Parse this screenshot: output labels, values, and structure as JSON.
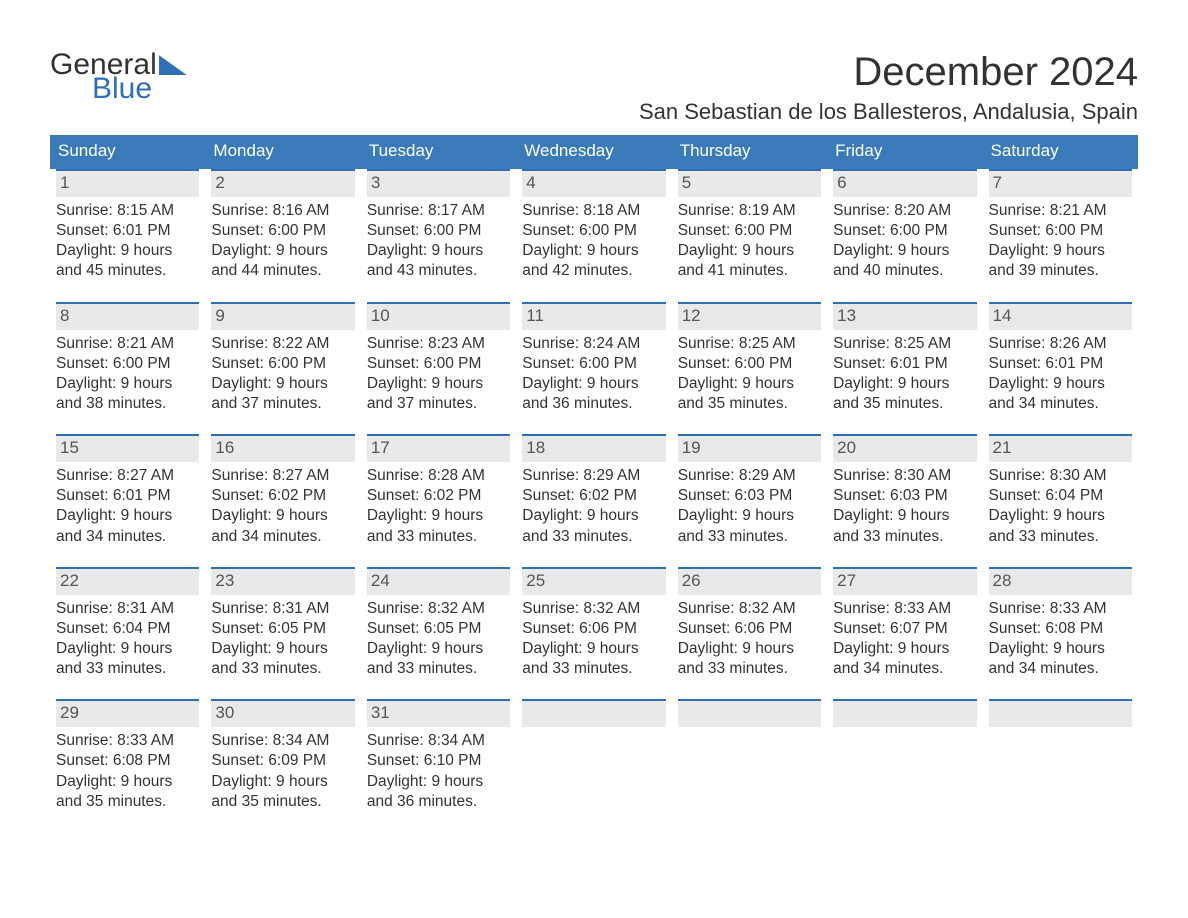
{
  "brand": {
    "word1": "General",
    "word2": "Blue"
  },
  "title": "December 2024",
  "location": "San Sebastian de los Ballesteros, Andalusia, Spain",
  "colors": {
    "header_bg": "#3a7ab8",
    "header_text": "#ffffff",
    "accent_border": "#2f6fb4",
    "daynum_bg": "#e9e9e9",
    "text": "#333333"
  },
  "weekdays": [
    "Sunday",
    "Monday",
    "Tuesday",
    "Wednesday",
    "Thursday",
    "Friday",
    "Saturday"
  ],
  "weeks": [
    [
      {
        "n": "1",
        "sr": "Sunrise: 8:15 AM",
        "ss": "Sunset: 6:01 PM",
        "d1": "Daylight: 9 hours",
        "d2": "and 45 minutes."
      },
      {
        "n": "2",
        "sr": "Sunrise: 8:16 AM",
        "ss": "Sunset: 6:00 PM",
        "d1": "Daylight: 9 hours",
        "d2": "and 44 minutes."
      },
      {
        "n": "3",
        "sr": "Sunrise: 8:17 AM",
        "ss": "Sunset: 6:00 PM",
        "d1": "Daylight: 9 hours",
        "d2": "and 43 minutes."
      },
      {
        "n": "4",
        "sr": "Sunrise: 8:18 AM",
        "ss": "Sunset: 6:00 PM",
        "d1": "Daylight: 9 hours",
        "d2": "and 42 minutes."
      },
      {
        "n": "5",
        "sr": "Sunrise: 8:19 AM",
        "ss": "Sunset: 6:00 PM",
        "d1": "Daylight: 9 hours",
        "d2": "and 41 minutes."
      },
      {
        "n": "6",
        "sr": "Sunrise: 8:20 AM",
        "ss": "Sunset: 6:00 PM",
        "d1": "Daylight: 9 hours",
        "d2": "and 40 minutes."
      },
      {
        "n": "7",
        "sr": "Sunrise: 8:21 AM",
        "ss": "Sunset: 6:00 PM",
        "d1": "Daylight: 9 hours",
        "d2": "and 39 minutes."
      }
    ],
    [
      {
        "n": "8",
        "sr": "Sunrise: 8:21 AM",
        "ss": "Sunset: 6:00 PM",
        "d1": "Daylight: 9 hours",
        "d2": "and 38 minutes."
      },
      {
        "n": "9",
        "sr": "Sunrise: 8:22 AM",
        "ss": "Sunset: 6:00 PM",
        "d1": "Daylight: 9 hours",
        "d2": "and 37 minutes."
      },
      {
        "n": "10",
        "sr": "Sunrise: 8:23 AM",
        "ss": "Sunset: 6:00 PM",
        "d1": "Daylight: 9 hours",
        "d2": "and 37 minutes."
      },
      {
        "n": "11",
        "sr": "Sunrise: 8:24 AM",
        "ss": "Sunset: 6:00 PM",
        "d1": "Daylight: 9 hours",
        "d2": "and 36 minutes."
      },
      {
        "n": "12",
        "sr": "Sunrise: 8:25 AM",
        "ss": "Sunset: 6:00 PM",
        "d1": "Daylight: 9 hours",
        "d2": "and 35 minutes."
      },
      {
        "n": "13",
        "sr": "Sunrise: 8:25 AM",
        "ss": "Sunset: 6:01 PM",
        "d1": "Daylight: 9 hours",
        "d2": "and 35 minutes."
      },
      {
        "n": "14",
        "sr": "Sunrise: 8:26 AM",
        "ss": "Sunset: 6:01 PM",
        "d1": "Daylight: 9 hours",
        "d2": "and 34 minutes."
      }
    ],
    [
      {
        "n": "15",
        "sr": "Sunrise: 8:27 AM",
        "ss": "Sunset: 6:01 PM",
        "d1": "Daylight: 9 hours",
        "d2": "and 34 minutes."
      },
      {
        "n": "16",
        "sr": "Sunrise: 8:27 AM",
        "ss": "Sunset: 6:02 PM",
        "d1": "Daylight: 9 hours",
        "d2": "and 34 minutes."
      },
      {
        "n": "17",
        "sr": "Sunrise: 8:28 AM",
        "ss": "Sunset: 6:02 PM",
        "d1": "Daylight: 9 hours",
        "d2": "and 33 minutes."
      },
      {
        "n": "18",
        "sr": "Sunrise: 8:29 AM",
        "ss": "Sunset: 6:02 PM",
        "d1": "Daylight: 9 hours",
        "d2": "and 33 minutes."
      },
      {
        "n": "19",
        "sr": "Sunrise: 8:29 AM",
        "ss": "Sunset: 6:03 PM",
        "d1": "Daylight: 9 hours",
        "d2": "and 33 minutes."
      },
      {
        "n": "20",
        "sr": "Sunrise: 8:30 AM",
        "ss": "Sunset: 6:03 PM",
        "d1": "Daylight: 9 hours",
        "d2": "and 33 minutes."
      },
      {
        "n": "21",
        "sr": "Sunrise: 8:30 AM",
        "ss": "Sunset: 6:04 PM",
        "d1": "Daylight: 9 hours",
        "d2": "and 33 minutes."
      }
    ],
    [
      {
        "n": "22",
        "sr": "Sunrise: 8:31 AM",
        "ss": "Sunset: 6:04 PM",
        "d1": "Daylight: 9 hours",
        "d2": "and 33 minutes."
      },
      {
        "n": "23",
        "sr": "Sunrise: 8:31 AM",
        "ss": "Sunset: 6:05 PM",
        "d1": "Daylight: 9 hours",
        "d2": "and 33 minutes."
      },
      {
        "n": "24",
        "sr": "Sunrise: 8:32 AM",
        "ss": "Sunset: 6:05 PM",
        "d1": "Daylight: 9 hours",
        "d2": "and 33 minutes."
      },
      {
        "n": "25",
        "sr": "Sunrise: 8:32 AM",
        "ss": "Sunset: 6:06 PM",
        "d1": "Daylight: 9 hours",
        "d2": "and 33 minutes."
      },
      {
        "n": "26",
        "sr": "Sunrise: 8:32 AM",
        "ss": "Sunset: 6:06 PM",
        "d1": "Daylight: 9 hours",
        "d2": "and 33 minutes."
      },
      {
        "n": "27",
        "sr": "Sunrise: 8:33 AM",
        "ss": "Sunset: 6:07 PM",
        "d1": "Daylight: 9 hours",
        "d2": "and 34 minutes."
      },
      {
        "n": "28",
        "sr": "Sunrise: 8:33 AM",
        "ss": "Sunset: 6:08 PM",
        "d1": "Daylight: 9 hours",
        "d2": "and 34 minutes."
      }
    ],
    [
      {
        "n": "29",
        "sr": "Sunrise: 8:33 AM",
        "ss": "Sunset: 6:08 PM",
        "d1": "Daylight: 9 hours",
        "d2": "and 35 minutes."
      },
      {
        "n": "30",
        "sr": "Sunrise: 8:34 AM",
        "ss": "Sunset: 6:09 PM",
        "d1": "Daylight: 9 hours",
        "d2": "and 35 minutes."
      },
      {
        "n": "31",
        "sr": "Sunrise: 8:34 AM",
        "ss": "Sunset: 6:10 PM",
        "d1": "Daylight: 9 hours",
        "d2": "and 36 minutes."
      },
      {
        "n": "",
        "sr": "",
        "ss": "",
        "d1": "",
        "d2": ""
      },
      {
        "n": "",
        "sr": "",
        "ss": "",
        "d1": "",
        "d2": ""
      },
      {
        "n": "",
        "sr": "",
        "ss": "",
        "d1": "",
        "d2": ""
      },
      {
        "n": "",
        "sr": "",
        "ss": "",
        "d1": "",
        "d2": ""
      }
    ]
  ]
}
